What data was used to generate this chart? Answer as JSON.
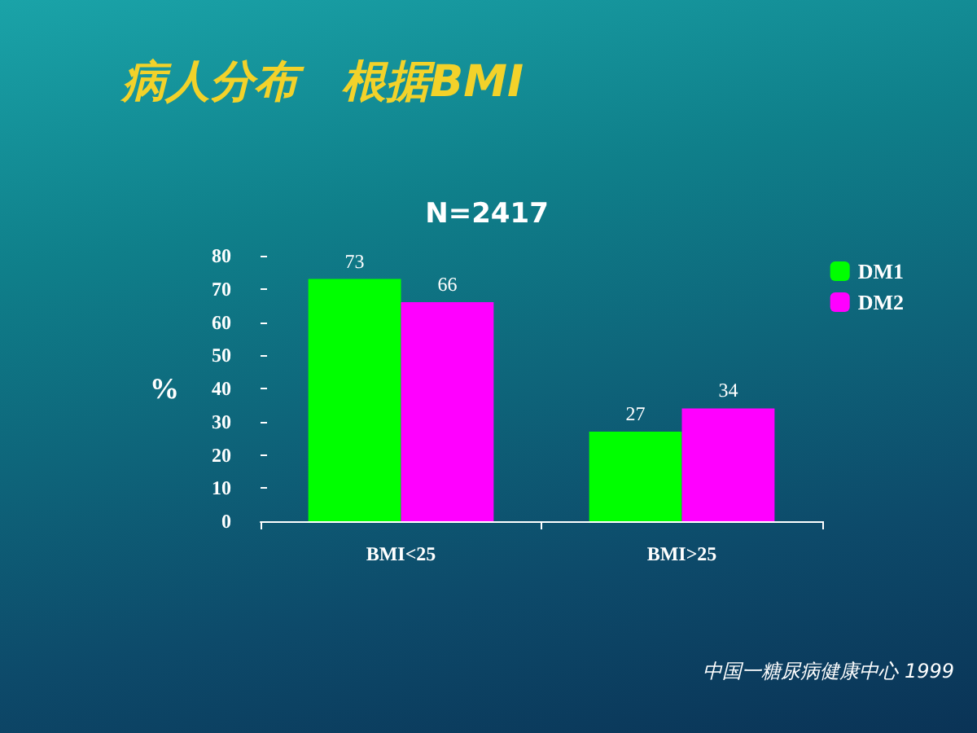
{
  "chart_data": {
    "type": "bar",
    "title": "病人分布　根据BMI",
    "subtitle": "N=2417",
    "ylabel": "%",
    "categories": [
      "BMI<25",
      "BMI>25"
    ],
    "series": [
      {
        "name": "DM1",
        "color": "#00ff00",
        "values": [
          73,
          27
        ]
      },
      {
        "name": "DM2",
        "color": "#ff00ff",
        "values": [
          66,
          34
        ]
      }
    ],
    "ylim": [
      0,
      80
    ],
    "yticks": [
      0,
      10,
      20,
      30,
      40,
      50,
      60,
      70,
      80
    ],
    "grid": false,
    "legend": "top right",
    "data_labels": true,
    "annotations": [
      "中国一糖尿病健康中心 1999"
    ]
  }
}
